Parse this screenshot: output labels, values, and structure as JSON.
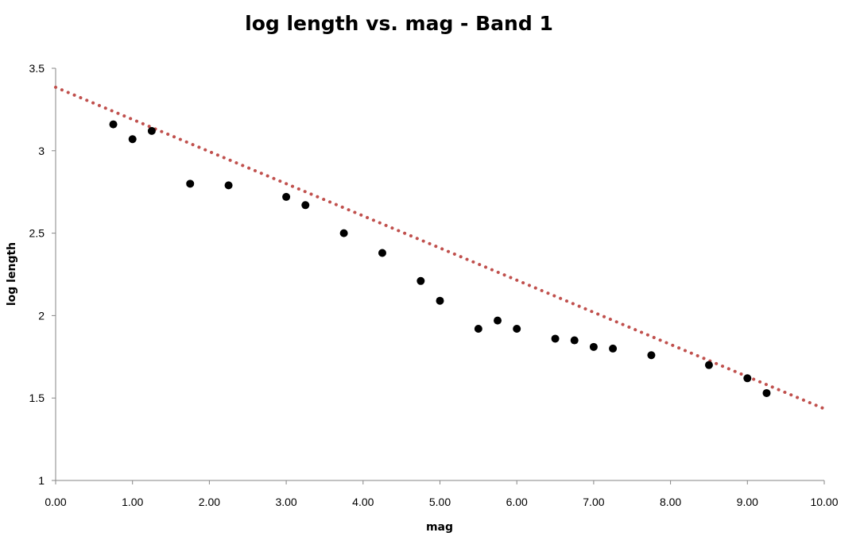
{
  "chart_data": {
    "type": "scatter",
    "title": "log length vs. mag - Band 1",
    "xlabel": "mag",
    "ylabel": "log length",
    "xlim": [
      0,
      10
    ],
    "ylim": [
      1,
      3.5
    ],
    "x_ticks": [
      0,
      1,
      2,
      3,
      4,
      5,
      6,
      7,
      8,
      9,
      10
    ],
    "x_tick_labels": [
      "0.00",
      "1.00",
      "2.00",
      "3.00",
      "4.00",
      "5.00",
      "6.00",
      "7.00",
      "8.00",
      "9.00",
      "10.00"
    ],
    "y_ticks": [
      1,
      1.5,
      2,
      2.5,
      3,
      3.5
    ],
    "y_tick_labels": [
      "1",
      "1.5",
      "2",
      "2.5",
      "3",
      "3.5"
    ],
    "grid": false,
    "legend": "none",
    "series": [
      {
        "x": [
          0.75,
          1.0,
          1.25,
          1.75,
          2.25,
          3.0,
          3.25,
          3.75,
          4.25,
          4.75,
          5.0,
          5.5,
          5.75,
          6.0,
          6.5,
          6.75,
          7.0,
          7.25,
          7.75,
          8.5,
          9.0,
          9.25
        ],
        "y": [
          3.16,
          3.07,
          3.12,
          2.8,
          2.79,
          2.72,
          2.67,
          2.5,
          2.38,
          2.21,
          2.09,
          1.92,
          1.97,
          1.92,
          1.86,
          1.85,
          1.81,
          1.8,
          1.76,
          1.7,
          1.62,
          1.53
        ],
        "color": "#000000",
        "marker": "circle"
      }
    ],
    "trendline": {
      "type": "linear",
      "x": [
        0,
        10
      ],
      "y": [
        3.385,
        1.435
      ],
      "color": "#C0504D",
      "style": "dotted"
    }
  }
}
